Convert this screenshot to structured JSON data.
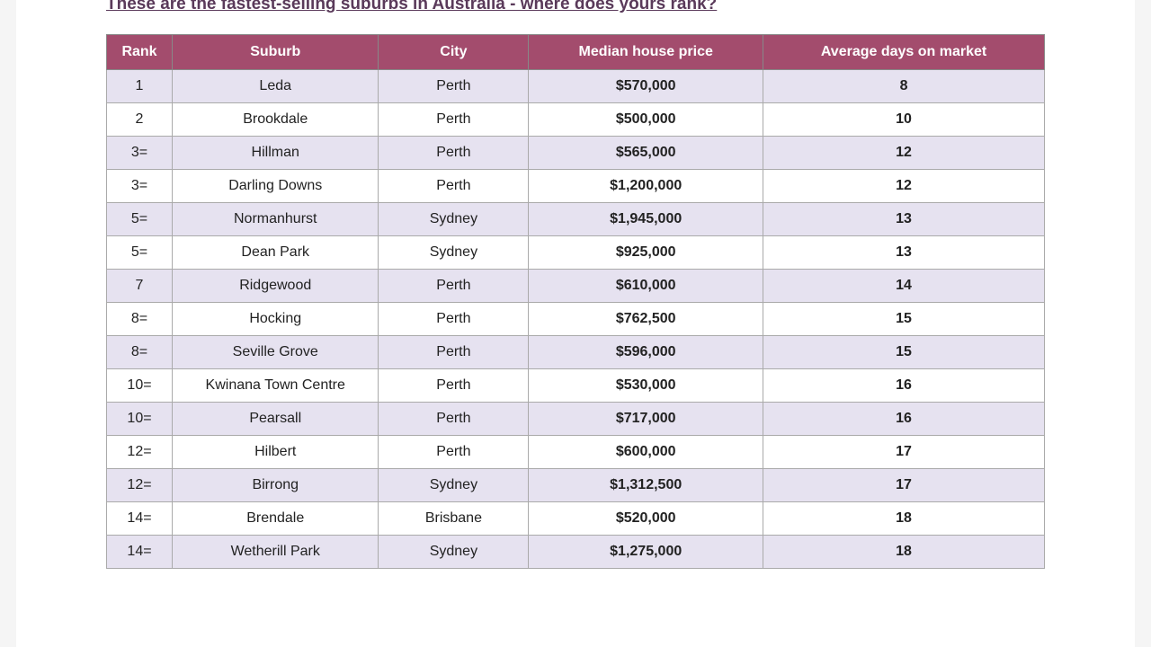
{
  "title": "These are the fastest-selling suburbs in Australia - where does yours rank?",
  "table": {
    "header_bg": "#a34c6d",
    "header_text_color": "#ffffff",
    "row_alt_bg": "#e6e2f0",
    "row_bg": "#ffffff",
    "border_color": "#aaaaaa",
    "columns": [
      {
        "label": "Rank",
        "bold": false
      },
      {
        "label": "Suburb",
        "bold": false
      },
      {
        "label": "City",
        "bold": false
      },
      {
        "label": "Median house price",
        "bold": true
      },
      {
        "label": "Average days on market",
        "bold": true
      }
    ],
    "rows": [
      {
        "rank": "1",
        "suburb": "Leda",
        "city": "Perth",
        "price": "$570,000",
        "days": "8"
      },
      {
        "rank": "2",
        "suburb": "Brookdale",
        "city": "Perth",
        "price": "$500,000",
        "days": "10"
      },
      {
        "rank": "3=",
        "suburb": "Hillman",
        "city": "Perth",
        "price": "$565,000",
        "days": "12"
      },
      {
        "rank": "3=",
        "suburb": "Darling Downs",
        "city": "Perth",
        "price": "$1,200,000",
        "days": "12"
      },
      {
        "rank": "5=",
        "suburb": "Normanhurst",
        "city": "Sydney",
        "price": "$1,945,000",
        "days": "13"
      },
      {
        "rank": "5=",
        "suburb": "Dean Park",
        "city": "Sydney",
        "price": "$925,000",
        "days": "13"
      },
      {
        "rank": "7",
        "suburb": "Ridgewood",
        "city": "Perth",
        "price": "$610,000",
        "days": "14"
      },
      {
        "rank": "8=",
        "suburb": "Hocking",
        "city": "Perth",
        "price": "$762,500",
        "days": "15"
      },
      {
        "rank": "8=",
        "suburb": "Seville Grove",
        "city": "Perth",
        "price": "$596,000",
        "days": "15"
      },
      {
        "rank": "10=",
        "suburb": "Kwinana Town Centre",
        "city": "Perth",
        "price": "$530,000",
        "days": "16"
      },
      {
        "rank": "10=",
        "suburb": "Pearsall",
        "city": "Perth",
        "price": "$717,000",
        "days": "16"
      },
      {
        "rank": "12=",
        "suburb": "Hilbert",
        "city": "Perth",
        "price": "$600,000",
        "days": "17"
      },
      {
        "rank": "12=",
        "suburb": "Birrong",
        "city": "Sydney",
        "price": "$1,312,500",
        "days": "17"
      },
      {
        "rank": "14=",
        "suburb": "Brendale",
        "city": "Brisbane",
        "price": "$520,000",
        "days": "18"
      },
      {
        "rank": "14=",
        "suburb": "Wetherill Park",
        "city": "Sydney",
        "price": "$1,275,000",
        "days": "18"
      }
    ]
  }
}
